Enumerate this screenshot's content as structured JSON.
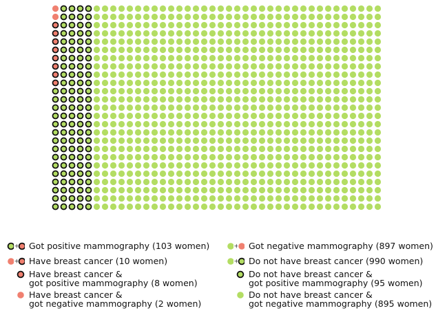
{
  "figure": {
    "grid": {
      "rows": 25,
      "cols": 40,
      "total": 1000,
      "fill_order": "row-major",
      "cells": [
        {
          "category": "have-cancer-negative",
          "count": 2
        },
        {
          "category": "have-cancer-positive",
          "count": 8
        },
        {
          "category": "no-cancer-positive",
          "count": 95
        },
        {
          "category": "no-cancer-negative",
          "count": 895
        }
      ],
      "layout_note": "positive results occupy first 5 columns; cancer cases in first column"
    },
    "colors": {
      "cancer_fill": "#f08070",
      "no_cancer_fill": "#b3dd63",
      "positive_ring": "#111111"
    },
    "legend": {
      "left": [
        {
          "id": "positive",
          "icon": [
            "ringed-green",
            "plus",
            "ringed-red"
          ],
          "text": "Got positive mammography (103 women)"
        },
        {
          "id": "have-cancer",
          "icon": [
            "plain-red",
            "plus",
            "ringed-red"
          ],
          "text": "Have breast cancer (10 women)"
        },
        {
          "id": "cancer-positive",
          "icon": [
            "ringed-red"
          ],
          "text": "Have breast cancer &\ngot positive mammography (8 women)"
        },
        {
          "id": "cancer-negative",
          "icon": [
            "plain-red"
          ],
          "text": "Have breast cancer &\ngot negative mammography (2 women)"
        }
      ],
      "right": [
        {
          "id": "negative",
          "icon": [
            "plain-green",
            "plus",
            "plain-red"
          ],
          "text": "Got negative mammography (897 women)"
        },
        {
          "id": "no-cancer",
          "icon": [
            "plain-green",
            "plus",
            "ringed-green"
          ],
          "text": "Do not have breast cancer (990 women)"
        },
        {
          "id": "no-cancer-positive",
          "icon": [
            "ringed-green"
          ],
          "text": "Do not have breast cancer &\ngot positive mammography (95 women)"
        },
        {
          "id": "no-cancer-negative",
          "icon": [
            "plain-green"
          ],
          "text": "Do not have breast cancer &\ngot negative mammography (895 women)"
        }
      ]
    }
  }
}
